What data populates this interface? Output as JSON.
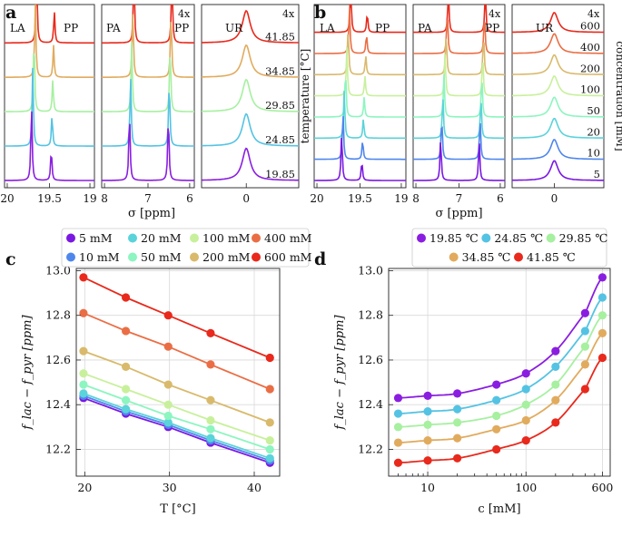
{
  "labels": {
    "a": "a",
    "b": "b",
    "c": "c",
    "d": "d"
  },
  "spectra_common": {
    "xlabel": "σ [ppm]",
    "panels": [
      {
        "id": "la",
        "peak_label": "LA",
        "peak_label2": "PP",
        "xticks": [
          "20",
          "19.5",
          "19"
        ],
        "scale": ""
      },
      {
        "id": "pa",
        "peak_label": "PA",
        "peak_label2": "PP",
        "xticks": [
          "8",
          "7",
          "6"
        ],
        "scale": "4x"
      },
      {
        "id": "ur",
        "peak_label": "UR",
        "peak_label2": "",
        "xticks": [
          "0"
        ],
        "scale": "4x"
      }
    ]
  },
  "panel_a": {
    "series_labels": [
      "41.85",
      "34.85",
      "29.85",
      "24.85",
      "19.85"
    ],
    "colors": [
      "#e8291c",
      "#e1ab5e",
      "#a6f0a0",
      "#54c3e3",
      "#8a1ee0"
    ]
  },
  "panel_b": {
    "axis_left": "temperature [°C]",
    "axis_right": "concentration [mM]",
    "series_labels": [
      "600",
      "400",
      "200",
      "100",
      "50",
      "20",
      "10",
      "5"
    ],
    "colors": [
      "#e8291c",
      "#ea6e45",
      "#d9ba6c",
      "#c8f09c",
      "#8cf5c0",
      "#5ad3da",
      "#4f86ec",
      "#7a18e2"
    ]
  },
  "chart_data": [
    {
      "id": "c",
      "type": "line",
      "title": "",
      "xlabel": "T [°C]",
      "ylabel": "f_lac − f_pyr [ppm]",
      "xlim": [
        19,
        43
      ],
      "ylim": [
        12.08,
        13.01
      ],
      "xticks": [
        20,
        30,
        40
      ],
      "yticks": [
        12.2,
        12.4,
        12.6,
        12.8,
        13.0
      ],
      "grid": true,
      "legend": "above",
      "x": [
        19.85,
        24.85,
        29.85,
        34.85,
        41.85
      ],
      "series": [
        {
          "name": "5 mM",
          "color": "#7a18e2",
          "values": [
            12.43,
            12.36,
            12.3,
            12.23,
            12.14
          ]
        },
        {
          "name": "10 mM",
          "color": "#4f86ec",
          "values": [
            12.44,
            12.37,
            12.31,
            12.24,
            12.15
          ]
        },
        {
          "name": "20 mM",
          "color": "#5ad3da",
          "values": [
            12.45,
            12.38,
            12.32,
            12.25,
            12.16
          ]
        },
        {
          "name": "50 mM",
          "color": "#8cf5c0",
          "values": [
            12.49,
            12.42,
            12.35,
            12.29,
            12.2
          ]
        },
        {
          "name": "100 mM",
          "color": "#c8f09c",
          "values": [
            12.54,
            12.47,
            12.4,
            12.33,
            12.24
          ]
        },
        {
          "name": "200 mM",
          "color": "#d9ba6c",
          "values": [
            12.64,
            12.57,
            12.49,
            12.42,
            12.32
          ]
        },
        {
          "name": "400 mM",
          "color": "#ea6e45",
          "values": [
            12.81,
            12.73,
            12.66,
            12.58,
            12.47
          ]
        },
        {
          "name": "600 mM",
          "color": "#e8291c",
          "values": [
            12.97,
            12.88,
            12.8,
            12.72,
            12.61
          ]
        }
      ]
    },
    {
      "id": "d",
      "type": "line",
      "title": "",
      "xlabel": "c [mM]",
      "ylabel": "f_lac − f_pyr [ppm]",
      "xscale": "log",
      "xlim": [
        4,
        720
      ],
      "ylim": [
        12.08,
        13.01
      ],
      "xticks": [
        10,
        100,
        600
      ],
      "yticks": [
        12.2,
        12.4,
        12.6,
        12.8,
        13.0
      ],
      "grid": true,
      "legend": "above",
      "x": [
        5,
        10,
        20,
        50,
        100,
        200,
        400,
        600
      ],
      "series": [
        {
          "name": "19.85 ℃",
          "color": "#8a1ee0",
          "values": [
            12.43,
            12.44,
            12.45,
            12.49,
            12.54,
            12.64,
            12.81,
            12.97
          ]
        },
        {
          "name": "24.85 ℃",
          "color": "#54c3e3",
          "values": [
            12.36,
            12.37,
            12.38,
            12.42,
            12.47,
            12.57,
            12.73,
            12.88
          ]
        },
        {
          "name": "29.85 ℃",
          "color": "#a6f0a0",
          "values": [
            12.3,
            12.31,
            12.32,
            12.35,
            12.4,
            12.49,
            12.66,
            12.8
          ]
        },
        {
          "name": "34.85 ℃",
          "color": "#e1ab5e",
          "values": [
            12.23,
            12.24,
            12.25,
            12.29,
            12.33,
            12.42,
            12.58,
            12.72
          ]
        },
        {
          "name": "41.85 ℃",
          "color": "#e8291c",
          "values": [
            12.14,
            12.15,
            12.16,
            12.2,
            12.24,
            12.32,
            12.47,
            12.61
          ]
        }
      ]
    }
  ]
}
